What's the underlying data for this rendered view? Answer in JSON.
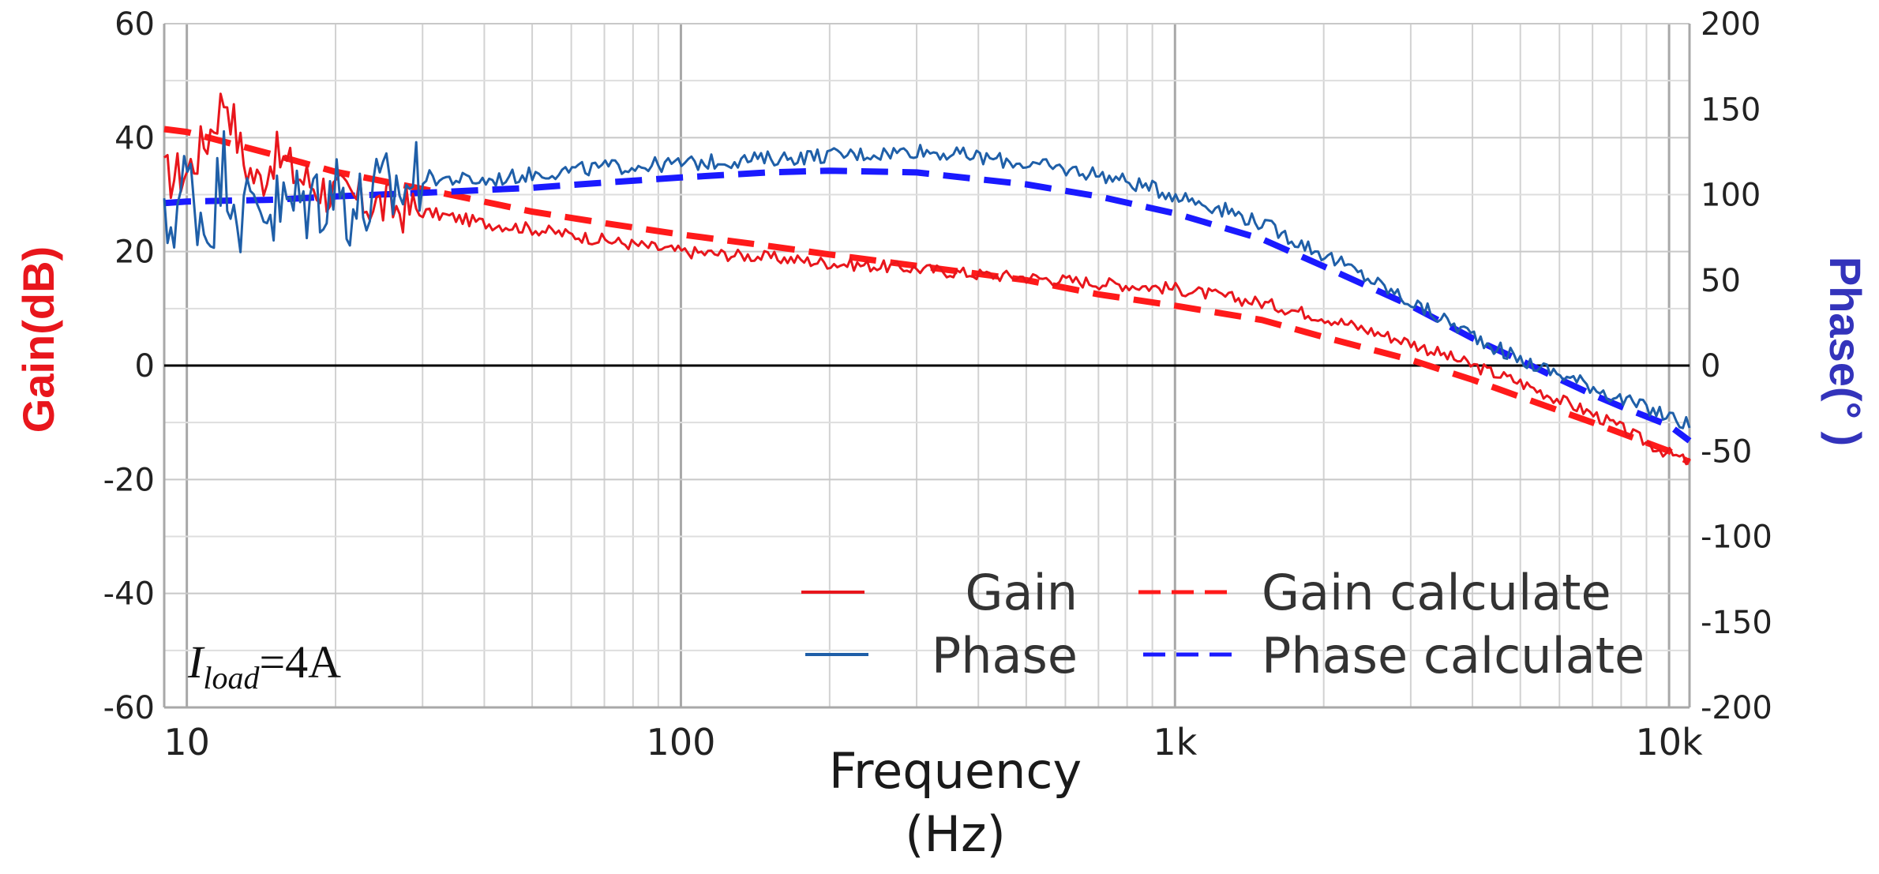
{
  "chart_data": {
    "type": "line",
    "xlabel": "Frequency",
    "xunit": "(Hz)",
    "xscale": "log",
    "xlim": [
      9,
      11000
    ],
    "x_ticks": [
      {
        "value": 10,
        "label": "10"
      },
      {
        "value": 100,
        "label": "100"
      },
      {
        "value": 1000,
        "label": "1k"
      },
      {
        "value": 10000,
        "label": "10k"
      }
    ],
    "ylabel_left": "Gain(dB)",
    "ylim_left": [
      -60,
      60
    ],
    "y_ticks_left": [
      "60",
      "40",
      "20",
      "0",
      "-20",
      "-40",
      "-60"
    ],
    "ylabel_right": "Phase(° )",
    "ylim_right": [
      -200,
      200
    ],
    "y_ticks_right": [
      "200",
      "150",
      "100",
      "50",
      "0",
      "-50",
      "-100",
      "-150",
      "-200"
    ],
    "grid": true,
    "legend_position": "bottom-right",
    "annotation": {
      "symbol": "I",
      "subscript": "load",
      "rest": "=4A"
    },
    "colors": {
      "gain": "#e8161c",
      "phase": "#1f5fa8",
      "gain_calc": "#ff1a1a",
      "phase_calc": "#1a1aff",
      "left_axis": "#e8161c",
      "right_axis": "#3333bb"
    },
    "series": [
      {
        "name": "Gain",
        "axis": "left",
        "style": "solid",
        "x": [
          9,
          10,
          11,
          12,
          13,
          14,
          15,
          17,
          20,
          25,
          30,
          40,
          50,
          70,
          100,
          150,
          200,
          300,
          400,
          500,
          700,
          1000,
          1500,
          2000,
          3000,
          4000,
          5000,
          6000,
          7000,
          8000,
          9000,
          10000,
          11000
        ],
        "y": [
          33,
          34,
          40,
          48,
          36,
          32,
          37,
          33,
          30,
          28,
          27,
          25,
          24,
          22,
          20,
          19,
          18,
          17,
          16,
          15.5,
          14.5,
          13.5,
          11,
          8.5,
          4,
          0,
          -3,
          -6,
          -8.5,
          -11,
          -13.5,
          -15.5,
          -17
        ]
      },
      {
        "name": "Phase",
        "axis": "right",
        "style": "solid",
        "x": [
          9,
          10,
          11,
          12,
          13,
          14,
          15,
          17,
          20,
          22,
          25,
          30,
          40,
          50,
          70,
          100,
          150,
          200,
          250,
          300,
          400,
          500,
          700,
          1000,
          1300,
          1500,
          2000,
          2500,
          3000,
          4000,
          5000,
          6000,
          7000,
          8000,
          9000,
          10000,
          11000
        ],
        "y": [
          75,
          110,
          80,
          120,
          85,
          100,
          90,
          95,
          105,
          90,
          100,
          110,
          108,
          112,
          116,
          118,
          121,
          123,
          124,
          126,
          122,
          118,
          112,
          100,
          90,
          83,
          65,
          50,
          37,
          18,
          3,
          -5,
          -12,
          -20,
          -25,
          -30,
          -35
        ]
      },
      {
        "name": "Gain calculate",
        "axis": "left",
        "style": "dashed",
        "x": [
          9,
          10,
          15,
          20,
          30,
          50,
          70,
          100,
          150,
          200,
          300,
          500,
          700,
          1000,
          1500,
          2000,
          3000,
          4000,
          5000,
          7000,
          10000,
          11000
        ],
        "y": [
          41.5,
          41,
          37,
          34,
          31,
          27,
          25,
          23,
          21,
          19.5,
          17.5,
          15,
          12.5,
          10.5,
          8,
          5,
          1,
          -2.5,
          -5.5,
          -10,
          -15,
          -17
        ]
      },
      {
        "name": "Phase calculate",
        "axis": "right",
        "style": "dashed",
        "x": [
          9,
          10,
          15,
          20,
          30,
          50,
          70,
          100,
          150,
          200,
          300,
          500,
          700,
          1000,
          1500,
          2000,
          3000,
          4000,
          5000,
          6000,
          7000,
          8000,
          10000,
          11000
        ],
        "y": [
          95,
          96,
          97,
          99,
          101,
          104,
          107,
          110,
          113,
          114,
          113,
          106,
          99,
          89,
          74,
          58,
          35,
          16,
          3,
          -8,
          -17,
          -24,
          -35,
          -44
        ]
      }
    ]
  }
}
